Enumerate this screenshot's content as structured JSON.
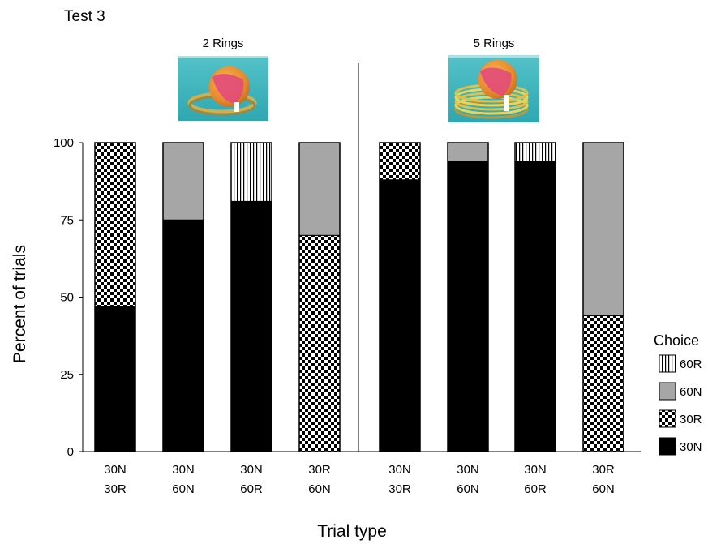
{
  "chart_data": {
    "type": "bar",
    "stacked": true,
    "title": "Test 3",
    "xlabel": "Trial type",
    "ylabel": "Percent of trials",
    "ylim": [
      0,
      100
    ],
    "yticks": [
      "0",
      "25",
      "50",
      "75",
      "100"
    ],
    "groups": [
      {
        "label": "2 Rings",
        "image": "ball-on-two-rings-photo"
      },
      {
        "label": "5 Rings",
        "image": "ball-on-five-rings-photo"
      }
    ],
    "categories": [
      {
        "line1": "30N",
        "line2": "30R"
      },
      {
        "line1": "30N",
        "line2": "60N"
      },
      {
        "line1": "30N",
        "line2": "60R"
      },
      {
        "line1": "30R",
        "line2": "60N"
      },
      {
        "line1": "30N",
        "line2": "30R"
      },
      {
        "line1": "30N",
        "line2": "60N"
      },
      {
        "line1": "30N",
        "line2": "60R"
      },
      {
        "line1": "30R",
        "line2": "60N"
      }
    ],
    "legend_title": "Choice",
    "legend_position": "right",
    "series": [
      {
        "name": "30N",
        "pattern": "solid-black",
        "values": [
          47,
          75,
          81,
          0,
          88,
          94,
          94,
          0
        ]
      },
      {
        "name": "30R",
        "pattern": "checker",
        "values": [
          53,
          0,
          0,
          70,
          12,
          0,
          0,
          44
        ]
      },
      {
        "name": "60N",
        "pattern": "solid-gray",
        "values": [
          0,
          25,
          0,
          30,
          0,
          6,
          0,
          56
        ]
      },
      {
        "name": "60R",
        "pattern": "vertical-stripes",
        "values": [
          0,
          0,
          19,
          0,
          0,
          0,
          6,
          0
        ]
      }
    ],
    "legend_order": [
      "60R",
      "60N",
      "30R",
      "30N"
    ],
    "colors": {
      "black": "#000000",
      "gray": "#a6a6a6",
      "white": "#ffffff"
    }
  }
}
